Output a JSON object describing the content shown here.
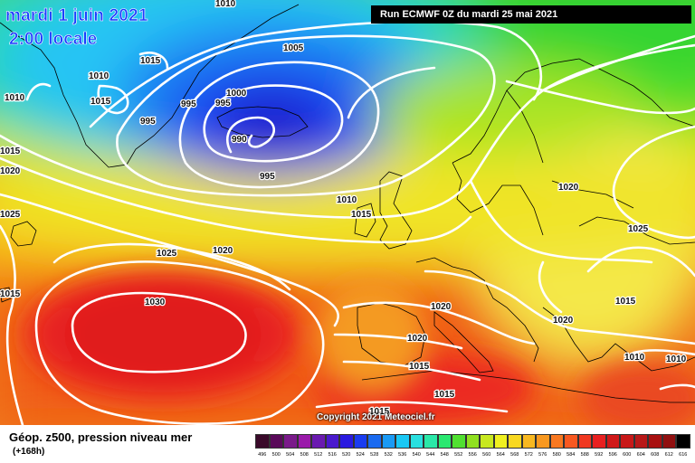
{
  "header": {
    "date_title": "mardi 1 juin 2021",
    "time_title": "2:00 locale",
    "run_label": "Run ECMWF 0Z du mardi 25 mai 2021"
  },
  "copyright": "Copyright 2021 Meteociel.fr",
  "footer": {
    "title": "Géop. z500, pression niveau mer",
    "subtitle": "(+168h)"
  },
  "legend": {
    "values": [
      "496",
      "500",
      "504",
      "508",
      "512",
      "516",
      "520",
      "524",
      "528",
      "532",
      "536",
      "540",
      "544",
      "548",
      "552",
      "556",
      "560",
      "564",
      "568",
      "572",
      "576",
      "580",
      "584",
      "588",
      "592",
      "596",
      "600",
      "604",
      "608",
      "612",
      "616"
    ],
    "colors": [
      "#3a0a2a",
      "#5a0a5a",
      "#7a1a8a",
      "#9a1aaa",
      "#6a1ab0",
      "#4a1acd",
      "#2a1ae0",
      "#1a3cf0",
      "#1a6af0",
      "#1a9af5",
      "#1ac8f5",
      "#2ae0e0",
      "#2ae8a8",
      "#2ae870",
      "#50e030",
      "#90e020",
      "#c8e820",
      "#f0f020",
      "#f8d820",
      "#f8b820",
      "#f89820",
      "#f87820",
      "#f85820",
      "#f03820",
      "#e82020",
      "#d01818",
      "#c81818",
      "#b81818",
      "#a81010",
      "#901010",
      "#000000"
    ]
  },
  "isobar_labels": [
    "1010",
    "1005",
    "1015",
    "1010",
    "1015",
    "1010",
    "995",
    "995",
    "995",
    "1000",
    "990",
    "995",
    "1015",
    "1020",
    "1025",
    "1010",
    "1015",
    "1020",
    "1025",
    "1030",
    "1020",
    "1020",
    "1015",
    "1020",
    "1015",
    "1025",
    "1015",
    "1020",
    "1015",
    "1010",
    "1010",
    "1015"
  ]
}
